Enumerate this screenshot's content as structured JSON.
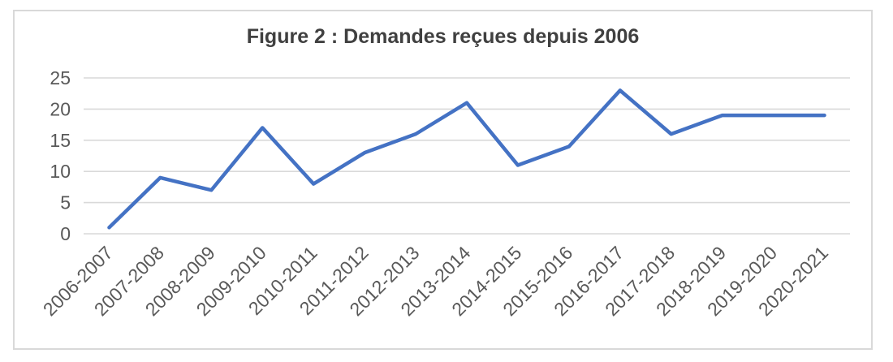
{
  "chart_data": {
    "type": "line",
    "title": "Figure 2 : Demandes reçues depuis 2006",
    "categories": [
      "2006-2007",
      "2007-2008",
      "2008-2009",
      "2009-2010",
      "2010-2011",
      "2011-2012",
      "2012-2013",
      "2013-2014",
      "2014-2015",
      "2015-2016",
      "2016-2017",
      "2017-2018",
      "2018-2019",
      "2019-2020",
      "2020-2021"
    ],
    "series": [
      {
        "name": "Demandes reçues",
        "values": [
          1,
          9,
          7,
          17,
          8,
          13,
          16,
          21,
          11,
          14,
          23,
          16,
          19,
          19,
          19
        ]
      }
    ],
    "xlabel": "",
    "ylabel": "",
    "ylim": [
      0,
      25
    ],
    "yticks": [
      0,
      5,
      10,
      15,
      20,
      25
    ],
    "grid": "horizontal",
    "legend_position": "none",
    "x_tick_rotation_degrees": 45,
    "colors": {
      "line": "#4472C4",
      "gridline": "#D9D9D9",
      "frame_border": "#D9D9D9",
      "tick_label": "#595959",
      "title": "#404040",
      "background": "#FFFFFF"
    }
  }
}
